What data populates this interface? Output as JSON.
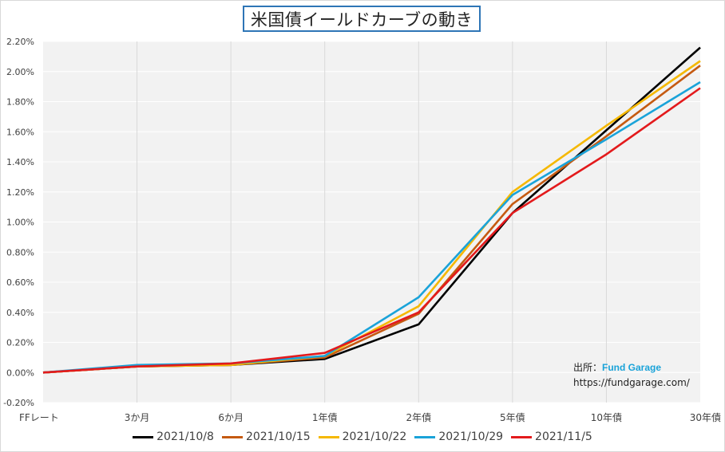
{
  "chart_data": {
    "type": "line",
    "title": "米国債イールドカーブの動き",
    "categories": [
      "FFレート",
      "3か月",
      "6か月",
      "1年債",
      "2年債",
      "5年債",
      "10年債",
      "30年債"
    ],
    "ylim": [
      -0.2,
      2.2
    ],
    "yticks": [
      "-0.20%",
      "0.00%",
      "0.20%",
      "0.40%",
      "0.60%",
      "0.80%",
      "1.00%",
      "1.20%",
      "1.40%",
      "1.60%",
      "1.80%",
      "2.00%",
      "2.20%"
    ],
    "grid": true,
    "legend_position": "bottom",
    "series": [
      {
        "name": "2021/10/8",
        "color": "#000000",
        "values": [
          0.0,
          0.04,
          0.05,
          0.09,
          0.32,
          1.06,
          1.61,
          2.16
        ]
      },
      {
        "name": "2021/10/15",
        "color": "#c55a11",
        "values": [
          0.0,
          0.04,
          0.05,
          0.1,
          0.39,
          1.12,
          1.57,
          2.04
        ]
      },
      {
        "name": "2021/10/22",
        "color": "#f5b800",
        "values": [
          0.0,
          0.04,
          0.05,
          0.11,
          0.44,
          1.2,
          1.64,
          2.07
        ]
      },
      {
        "name": "2021/10/29",
        "color": "#1aa3d9",
        "values": [
          0.0,
          0.05,
          0.06,
          0.11,
          0.5,
          1.18,
          1.55,
          1.93
        ]
      },
      {
        "name": "2021/11/5",
        "color": "#e31a1c",
        "values": [
          0.0,
          0.04,
          0.06,
          0.13,
          0.4,
          1.06,
          1.45,
          1.89
        ]
      }
    ]
  },
  "source": {
    "label": "出所：",
    "brand": "Fund Garage",
    "url": "https://fundgarage.com/"
  }
}
